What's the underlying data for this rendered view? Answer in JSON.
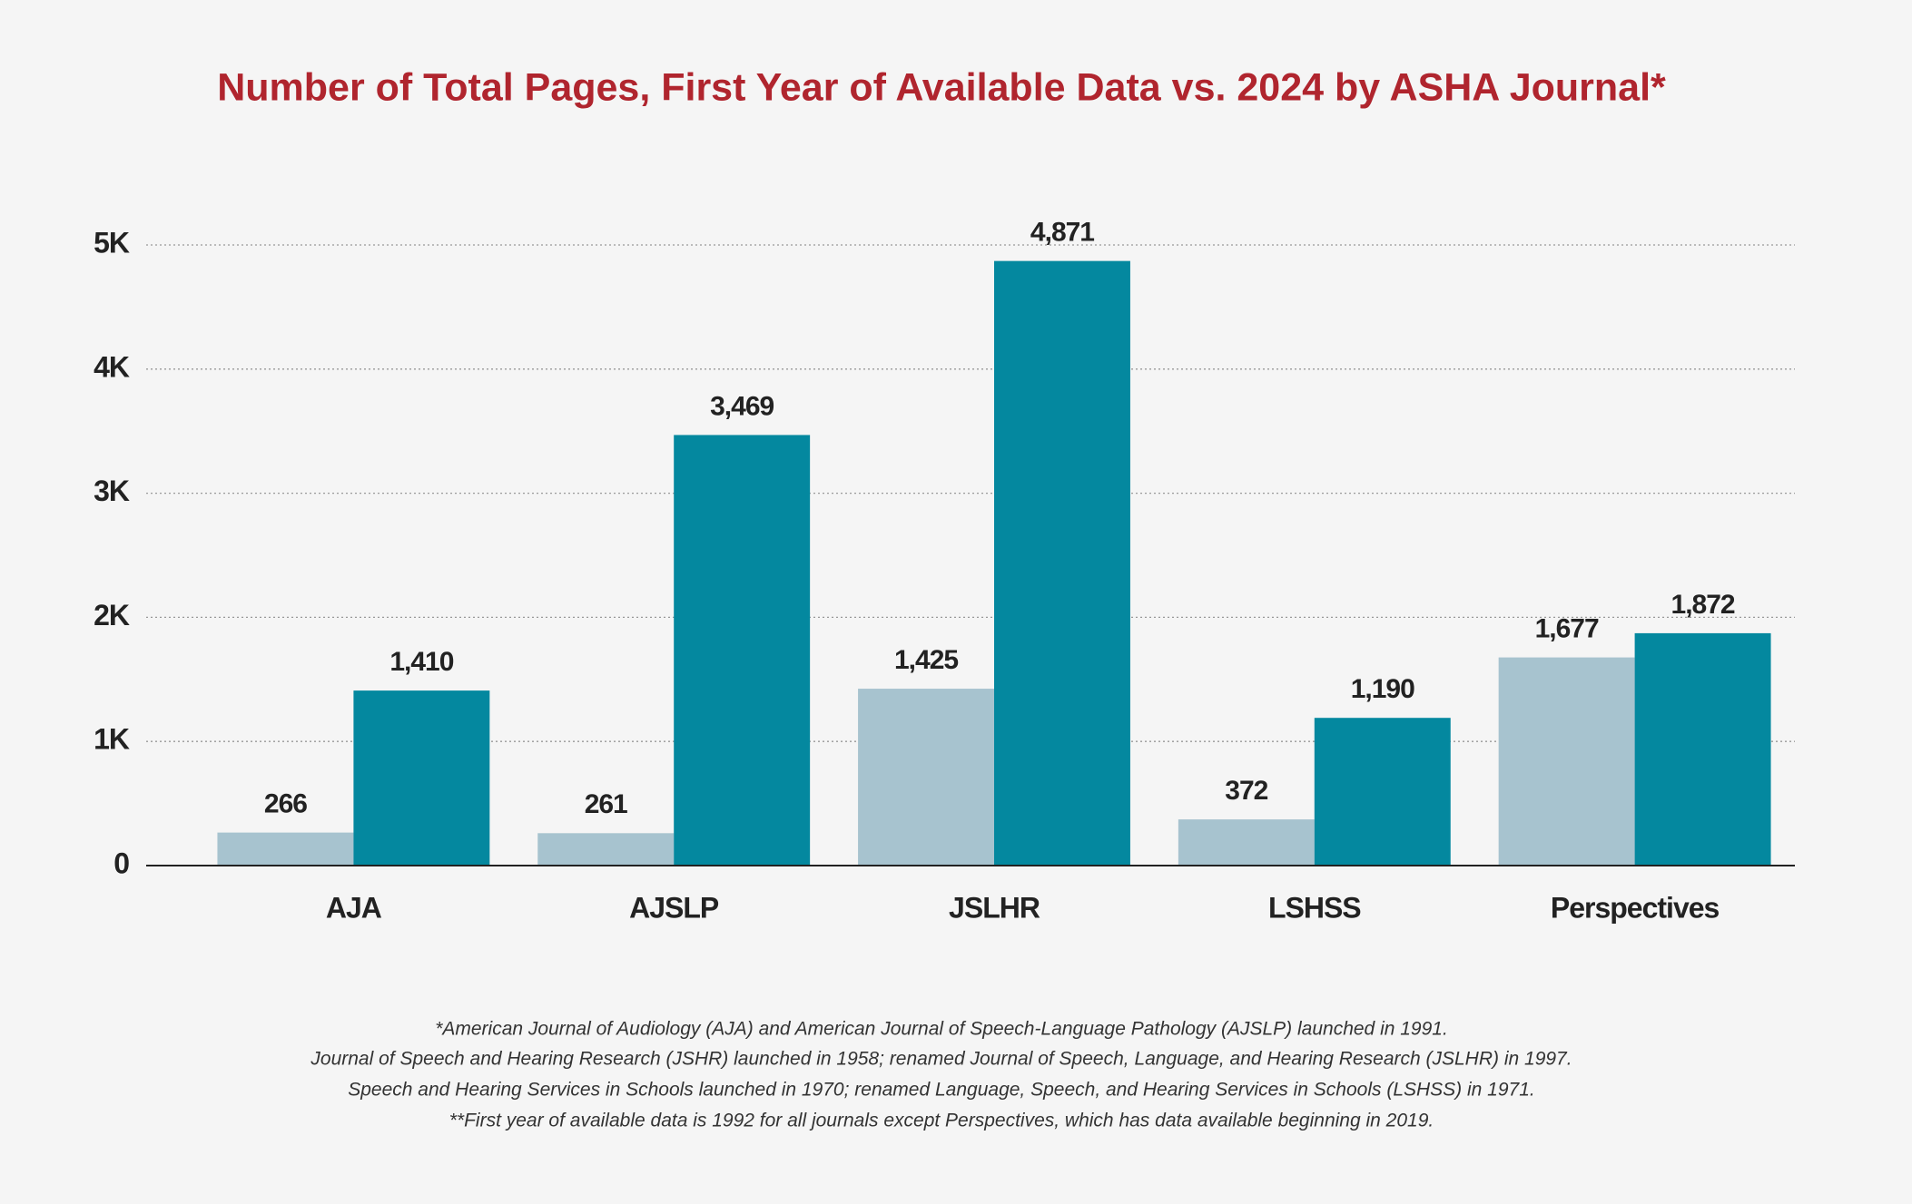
{
  "chart_data": {
    "type": "bar",
    "title": "Number of Total Pages, First Year of Available Data vs. 2024 by ASHA Journal*",
    "categories": [
      "AJA",
      "AJSLP",
      "JSLHR",
      "LSHSS",
      "Perspectives"
    ],
    "series": [
      {
        "color": "#a7c3cf",
        "values": [
          266,
          261,
          1425,
          372,
          1677
        ],
        "value_labels": [
          "266",
          "261",
          "1,425",
          "372",
          "1,677"
        ]
      },
      {
        "color": "#04889f",
        "values": [
          1410,
          3469,
          4871,
          1190,
          1872
        ],
        "value_labels": [
          "1,410",
          "3,469",
          "4,871",
          "1,190",
          "1,872"
        ]
      }
    ],
    "ylim": [
      0,
      5000
    ],
    "yticks": [
      0,
      {
        "value": 1000,
        "label": "1K"
      },
      {
        "value": 2000,
        "label": "2K"
      },
      {
        "value": 3000,
        "label": "3K"
      },
      {
        "value": 4000,
        "label": "4K"
      },
      {
        "value": 5000,
        "label": "5K"
      }
    ],
    "grid": true,
    "notes": [
      "*American Journal of Audiology (AJA) and American Journal of Speech-Language Pathology (AJSLP) launched in 1991.",
      "Journal of Speech and Hearing Research (JSHR) launched in 1958; renamed Journal of Speech, Language, and Hearing Research (JSLHR) in 1997.",
      "Speech and Hearing Services in Schools launched in 1970; renamed Language, Speech, and Hearing Services in Schools (LSHSS) in 1971.",
      "**First year of available data is 1992 for all journals except Perspectives, which has data available beginning in 2019."
    ]
  }
}
